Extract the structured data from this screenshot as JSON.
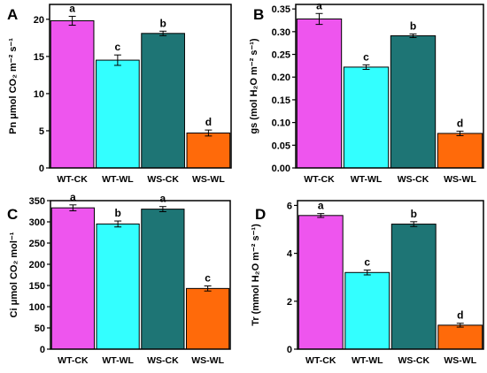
{
  "colors": {
    "WT-CK": "#ee55ee",
    "WT-WL": "#33ffff",
    "WS-CK": "#1e7575",
    "WS-WL": "#ff6a0a"
  },
  "chart_data": [
    {
      "type": "bar",
      "panel": "A",
      "ylabel": "Pn μmol CO₂ m⁻² s⁻¹",
      "categories": [
        "WT-CK",
        "WT-WL",
        "WS-CK",
        "WS-WL"
      ],
      "values": [
        19.8,
        14.5,
        18.1,
        4.7
      ],
      "errors": [
        0.6,
        0.7,
        0.3,
        0.4
      ],
      "significance": [
        "a",
        "c",
        "b",
        "d"
      ],
      "ylim": [
        0,
        22
      ],
      "yticks": [
        0,
        5,
        10,
        15,
        20
      ],
      "ytick_labels": [
        "0",
        "5",
        "10",
        "15",
        "20"
      ]
    },
    {
      "type": "bar",
      "panel": "B",
      "ylabel": "gs (mol H₂O m⁻² s⁻¹)",
      "categories": [
        "WT-CK",
        "WT-WL",
        "WS-CK",
        "WS-WL"
      ],
      "values": [
        0.328,
        0.222,
        0.291,
        0.076
      ],
      "errors": [
        0.012,
        0.005,
        0.004,
        0.005
      ],
      "significance": [
        "a",
        "c",
        "b",
        "d"
      ],
      "ylim": [
        0,
        0.36
      ],
      "yticks": [
        0,
        0.05,
        0.1,
        0.15,
        0.2,
        0.25,
        0.3,
        0.35
      ],
      "ytick_labels": [
        "0.00",
        "0.05",
        "0.10",
        "0.15",
        "0.20",
        "0.25",
        "0.30",
        "0.35"
      ]
    },
    {
      "type": "bar",
      "panel": "C",
      "ylabel": "Ci μmol CO₂ mol⁻¹",
      "categories": [
        "WT-CK",
        "WT-WL",
        "WS-CK",
        "WS-WL"
      ],
      "values": [
        333,
        295,
        330,
        143
      ],
      "errors": [
        7,
        7,
        6,
        6
      ],
      "significance": [
        "a",
        "b",
        "a",
        "c"
      ],
      "ylim": [
        0,
        350
      ],
      "yticks": [
        0,
        50,
        100,
        150,
        200,
        250,
        300,
        350
      ],
      "ytick_labels": [
        "0",
        "50",
        "100",
        "150",
        "200",
        "250",
        "300",
        "350"
      ]
    },
    {
      "type": "bar",
      "panel": "D",
      "ylabel": "Tr (mmol H₂O m⁻² s⁻¹)",
      "categories": [
        "WT-CK",
        "WT-WL",
        "WS-CK",
        "WS-WL"
      ],
      "values": [
        5.58,
        3.2,
        5.22,
        1.0
      ],
      "errors": [
        0.08,
        0.1,
        0.1,
        0.08
      ],
      "significance": [
        "a",
        "c",
        "b",
        "d"
      ],
      "ylim": [
        0,
        6.2
      ],
      "yticks": [
        0,
        2,
        4,
        6
      ],
      "ytick_labels": [
        "0",
        "2",
        "4",
        "6"
      ]
    }
  ]
}
